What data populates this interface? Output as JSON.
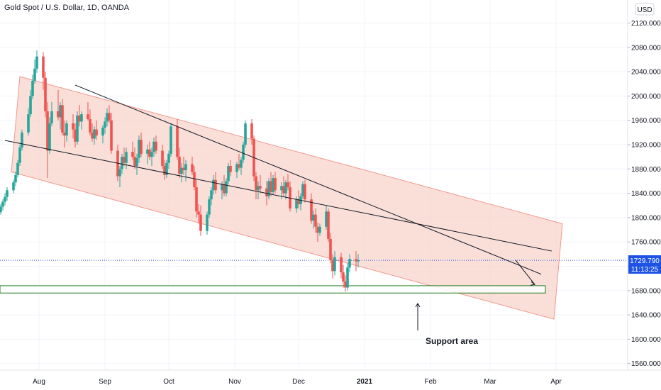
{
  "chart_data": {
    "type": "candlestick",
    "title": "Gold Spot / U.S. Dollar, 1D, OANDA",
    "currency": "USD",
    "ylim": [
      1550,
      2130
    ],
    "y_ticks": [
      "1560.000",
      "1600.000",
      "1640.000",
      "1680.000",
      "1720.000",
      "1760.000",
      "1800.000",
      "1840.000",
      "1880.000",
      "1920.000",
      "1960.000",
      "2000.000",
      "2040.000",
      "2080.000",
      "2120.000"
    ],
    "x_labels": [
      {
        "label": "Aug",
        "date": "2020-08-01"
      },
      {
        "label": "Sep",
        "date": "2020-09-01"
      },
      {
        "label": "Oct",
        "date": "2020-10-01"
      },
      {
        "label": "Nov",
        "date": "2020-11-01"
      },
      {
        "label": "Dec",
        "date": "2020-12-01"
      },
      {
        "label": "2021",
        "date": "2021-01-01"
      },
      {
        "label": "Feb",
        "date": "2021-02-01"
      },
      {
        "label": "Mar",
        "date": "2021-03-01"
      },
      {
        "label": "Apr",
        "date": "2021-04-01"
      }
    ],
    "last_price": "1729.790",
    "countdown": "11:13:25",
    "annotation": "Support area",
    "candle_start_date": "2020-07-10",
    "colors": {
      "up": "#26a69a",
      "down": "#ef5350",
      "support_box": "#1b7a1b",
      "channel_fill": "#f6c9c0"
    },
    "candles": [
      [
        1798,
        1812,
        1790,
        1806
      ],
      [
        1806,
        1814,
        1800,
        1809
      ],
      [
        1809,
        1822,
        1805,
        1818
      ],
      [
        1818,
        1830,
        1812,
        1826
      ],
      [
        1826,
        1840,
        1820,
        1834
      ],
      [
        1834,
        1850,
        1828,
        1845
      ],
      [
        1845,
        1862,
        1840,
        1858
      ],
      [
        1858,
        1876,
        1852,
        1870
      ],
      [
        1870,
        1895,
        1866,
        1890
      ],
      [
        1890,
        1920,
        1885,
        1915
      ],
      [
        1915,
        1945,
        1910,
        1940
      ],
      [
        1940,
        1980,
        1935,
        1970
      ],
      [
        1970,
        2010,
        1965,
        2000
      ],
      [
        2000,
        2035,
        1995,
        2025
      ],
      [
        2025,
        2060,
        2020,
        2045
      ],
      [
        2045,
        2075,
        2038,
        2065
      ],
      [
        2065,
        2072,
        2010,
        2030
      ],
      [
        2030,
        2040,
        1965,
        1975
      ],
      [
        1975,
        1990,
        1865,
        1910
      ],
      [
        1910,
        1965,
        1905,
        1955
      ],
      [
        1955,
        1990,
        1950,
        1975
      ],
      [
        1975,
        2010,
        1960,
        1965
      ],
      [
        1965,
        1990,
        1945,
        1985
      ],
      [
        1985,
        1995,
        1935,
        1940
      ],
      [
        1940,
        1960,
        1915,
        1935
      ],
      [
        1935,
        1960,
        1925,
        1955
      ],
      [
        1955,
        1970,
        1930,
        1945
      ],
      [
        1945,
        1955,
        1915,
        1925
      ],
      [
        1925,
        1975,
        1920,
        1968
      ],
      [
        1968,
        1985,
        1950,
        1958
      ],
      [
        1958,
        1975,
        1945,
        1970
      ],
      [
        1970,
        1990,
        1960,
        1962
      ],
      [
        1962,
        1978,
        1935,
        1940
      ],
      [
        1940,
        1955,
        1925,
        1930
      ],
      [
        1930,
        1950,
        1920,
        1945
      ],
      [
        1945,
        1960,
        1928,
        1935
      ],
      [
        1935,
        1952,
        1922,
        1948
      ],
      [
        1948,
        1965,
        1938,
        1958
      ],
      [
        1958,
        1980,
        1950,
        1972
      ],
      [
        1972,
        1985,
        1955,
        1960
      ],
      [
        1960,
        1972,
        1905,
        1910
      ],
      [
        1910,
        1920,
        1860,
        1868
      ],
      [
        1868,
        1885,
        1850,
        1880
      ],
      [
        1880,
        1905,
        1872,
        1900
      ],
      [
        1900,
        1915,
        1885,
        1890
      ],
      [
        1890,
        1915,
        1880,
        1908
      ],
      [
        1908,
        1925,
        1895,
        1900
      ],
      [
        1900,
        1915,
        1880,
        1885
      ],
      [
        1885,
        1905,
        1870,
        1898
      ],
      [
        1898,
        1935,
        1890,
        1928
      ],
      [
        1928,
        1940,
        1900,
        1905
      ],
      [
        1905,
        1920,
        1888,
        1912
      ],
      [
        1912,
        1925,
        1895,
        1900
      ],
      [
        1900,
        1915,
        1885,
        1908
      ],
      [
        1908,
        1932,
        1900,
        1925
      ],
      [
        1925,
        1935,
        1905,
        1910
      ],
      [
        1910,
        1920,
        1880,
        1885
      ],
      [
        1885,
        1895,
        1862,
        1870
      ],
      [
        1870,
        1895,
        1865,
        1890
      ],
      [
        1890,
        1910,
        1880,
        1905
      ],
      [
        1905,
        1955,
        1900,
        1950
      ],
      [
        1950,
        1962,
        1895,
        1900
      ],
      [
        1900,
        1915,
        1865,
        1872
      ],
      [
        1872,
        1890,
        1858,
        1882
      ],
      [
        1882,
        1900,
        1870,
        1878
      ],
      [
        1878,
        1895,
        1860,
        1888
      ],
      [
        1888,
        1900,
        1870,
        1875
      ],
      [
        1875,
        1885,
        1845,
        1850
      ],
      [
        1850,
        1862,
        1800,
        1810
      ],
      [
        1810,
        1822,
        1790,
        1805
      ],
      [
        1805,
        1820,
        1770,
        1778
      ],
      [
        1778,
        1810,
        1772,
        1805
      ],
      [
        1805,
        1835,
        1800,
        1830
      ],
      [
        1830,
        1850,
        1820,
        1845
      ],
      [
        1845,
        1870,
        1838,
        1862
      ],
      [
        1862,
        1875,
        1840,
        1845
      ],
      [
        1845,
        1860,
        1830,
        1855
      ],
      [
        1855,
        1870,
        1835,
        1840
      ],
      [
        1840,
        1865,
        1835,
        1860
      ],
      [
        1860,
        1890,
        1855,
        1885
      ],
      [
        1885,
        1895,
        1868,
        1875
      ],
      [
        1875,
        1892,
        1865,
        1888
      ],
      [
        1888,
        1905,
        1878,
        1882
      ],
      [
        1882,
        1900,
        1870,
        1895
      ],
      [
        1895,
        1925,
        1890,
        1920
      ],
      [
        1920,
        1960,
        1915,
        1955
      ],
      [
        1955,
        1962,
        1920,
        1930
      ],
      [
        1930,
        1935,
        1860,
        1868
      ],
      [
        1868,
        1875,
        1830,
        1845
      ],
      [
        1845,
        1860,
        1830,
        1852
      ],
      [
        1852,
        1870,
        1840,
        1848
      ],
      [
        1848,
        1860,
        1820,
        1835
      ],
      [
        1835,
        1865,
        1830,
        1860
      ],
      [
        1860,
        1875,
        1835,
        1842
      ],
      [
        1842,
        1870,
        1838,
        1865
      ],
      [
        1865,
        1875,
        1840,
        1845
      ],
      [
        1845,
        1858,
        1830,
        1852
      ],
      [
        1852,
        1868,
        1835,
        1840
      ],
      [
        1840,
        1862,
        1830,
        1858
      ],
      [
        1858,
        1872,
        1845,
        1850
      ],
      [
        1850,
        1860,
        1810,
        1815
      ],
      [
        1815,
        1835,
        1808,
        1830
      ],
      [
        1830,
        1845,
        1815,
        1822
      ],
      [
        1822,
        1840,
        1812,
        1835
      ],
      [
        1835,
        1860,
        1830,
        1855
      ],
      [
        1855,
        1862,
        1825,
        1830
      ],
      [
        1830,
        1840,
        1790,
        1795
      ],
      [
        1795,
        1812,
        1782,
        1805
      ],
      [
        1805,
        1815,
        1775,
        1785
      ],
      [
        1785,
        1792,
        1760,
        1775
      ],
      [
        1775,
        1790,
        1770,
        1785
      ],
      [
        1785,
        1820,
        1780,
        1810
      ],
      [
        1810,
        1815,
        1760,
        1765
      ],
      [
        1765,
        1775,
        1725,
        1730
      ],
      [
        1730,
        1740,
        1700,
        1712
      ],
      [
        1712,
        1745,
        1705,
        1735
      ],
      [
        1735,
        1742,
        1700,
        1710
      ],
      [
        1710,
        1722,
        1685,
        1695
      ],
      [
        1695,
        1705,
        1678,
        1685
      ],
      [
        1685,
        1725,
        1680,
        1718
      ],
      [
        1718,
        1740,
        1710,
        1732
      ],
      [
        1732,
        1745,
        1712,
        1728
      ],
      [
        1728,
        1740,
        1718,
        1730
      ]
    ]
  }
}
